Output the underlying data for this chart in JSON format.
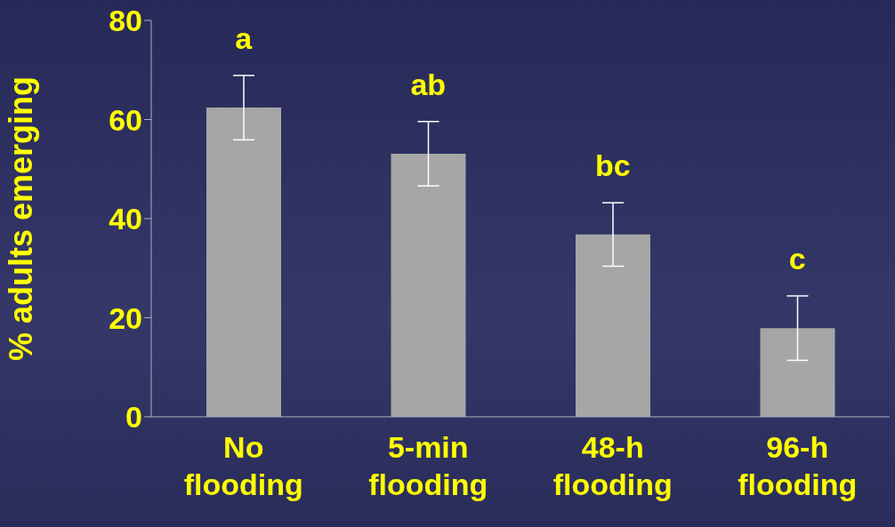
{
  "chart_data": {
    "type": "bar",
    "ylabel": "% adults emerging",
    "categories": [
      "No flooding",
      "5-min flooding",
      "48-h flooding",
      "96-h flooding"
    ],
    "values": [
      62.4,
      53.1,
      36.8,
      17.9
    ],
    "errors": [
      6.5,
      6.5,
      6.4,
      6.5
    ],
    "color": "#a6a6a6",
    "ylim": [
      0,
      80
    ],
    "yticks": [
      0,
      20,
      40,
      60,
      80
    ],
    "grid": false,
    "legend": false,
    "annotations": [
      "a",
      "ab",
      "bc",
      "c"
    ]
  }
}
